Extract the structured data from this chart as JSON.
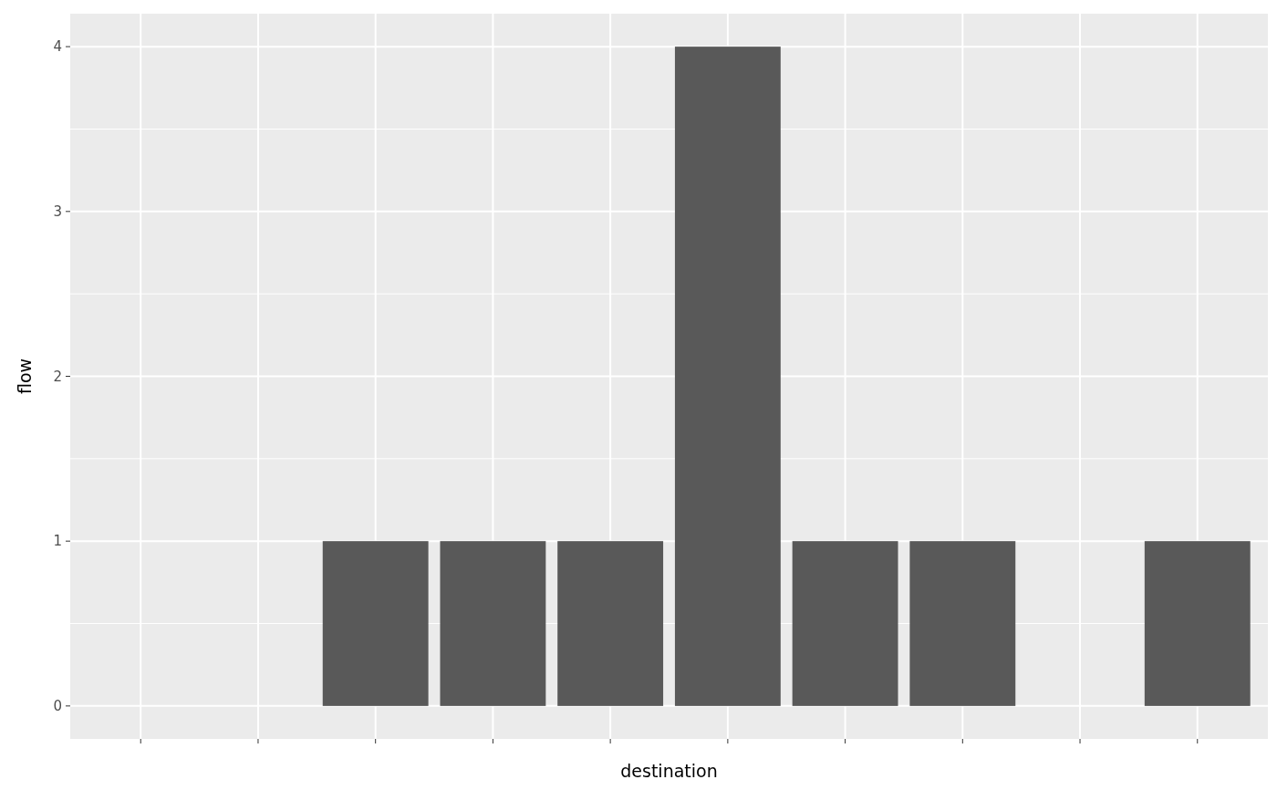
{
  "chart_data": {
    "type": "bar",
    "xlabel": "destination",
    "ylabel": "flow",
    "categories": [
      null,
      null,
      null,
      null,
      null,
      null,
      null,
      null,
      null,
      null
    ],
    "values": [
      null,
      null,
      1,
      1,
      1,
      4,
      1,
      1,
      null,
      1
    ],
    "color": "#595959",
    "ylim": [
      -0.2,
      4.2
    ],
    "yticks": [
      0,
      1,
      2,
      3,
      4
    ],
    "grid": true
  }
}
